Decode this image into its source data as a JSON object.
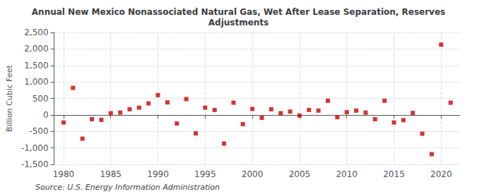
{
  "chart_data": {
    "type": "scatter",
    "title": "Annual New Mexico Nonassociated Natural Gas, Wet After Lease Separation, Reserves\nAdjustments",
    "ylabel": "Billion Cubic Feet",
    "annotations": [
      "Source: U.S. Energy Information Administration"
    ],
    "x": [
      1980,
      1981,
      1982,
      1983,
      1984,
      1985,
      1986,
      1987,
      1988,
      1989,
      1990,
      1991,
      1992,
      1993,
      1994,
      1995,
      1996,
      1997,
      1998,
      1999,
      2000,
      2001,
      2002,
      2003,
      2004,
      2005,
      2006,
      2007,
      2008,
      2009,
      2010,
      2011,
      2012,
      2013,
      2014,
      2015,
      2016,
      2017,
      2018,
      2019,
      2020,
      2021
    ],
    "values": [
      -230,
      820,
      -720,
      -130,
      -150,
      50,
      70,
      170,
      220,
      350,
      600,
      380,
      -260,
      480,
      -560,
      220,
      150,
      -870,
      370,
      -280,
      180,
      -90,
      170,
      50,
      100,
      -20,
      150,
      130,
      430,
      -70,
      80,
      130,
      70,
      -130,
      430,
      -230,
      -160,
      60,
      -570,
      -1190,
      2130,
      370
    ],
    "color": "#cc0000",
    "marker": "square",
    "xlim": [
      1979,
      2022
    ],
    "xticks": [
      1980,
      1985,
      1990,
      1995,
      2000,
      2005,
      2010,
      2015,
      2020
    ],
    "ylim": [
      -1500,
      2500
    ],
    "yticks": [
      {
        "value": -1500,
        "label": "-1,500"
      },
      {
        "value": -1000,
        "label": "-1,000"
      },
      -500,
      0,
      500,
      {
        "value": 1000,
        "label": "1,000"
      },
      {
        "value": 1500,
        "label": "1,500"
      },
      {
        "value": 2000,
        "label": "2,000"
      },
      {
        "value": 2500,
        "label": "2,500"
      }
    ],
    "grid": true
  }
}
